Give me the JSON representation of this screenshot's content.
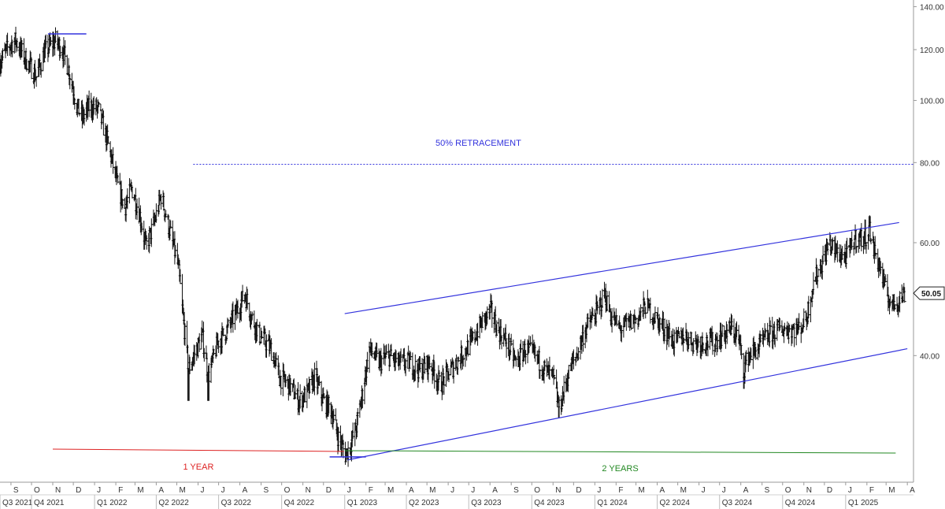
{
  "chart_data": {
    "type": "ohlc",
    "scale": "log",
    "ylim": [
      26,
      145
    ],
    "xlim": [
      "2021-08-16",
      "2025-04-10"
    ],
    "grid": false,
    "y_ticks": [
      "140.00",
      "120.00",
      "100.00",
      "80.00",
      "60.00",
      "40.00"
    ],
    "y_tick_values": [
      140,
      120,
      100,
      80,
      60,
      40
    ],
    "last_price": "50.05",
    "last_price_value": 50.05,
    "month_labels": [
      {
        "label": "S",
        "date": "2021-09-01"
      },
      {
        "label": "O",
        "date": "2021-10-01"
      },
      {
        "label": "N",
        "date": "2021-11-01"
      },
      {
        "label": "D",
        "date": "2021-12-01"
      },
      {
        "label": "J",
        "date": "2022-01-01"
      },
      {
        "label": "F",
        "date": "2022-02-01"
      },
      {
        "label": "M",
        "date": "2022-03-01"
      },
      {
        "label": "A",
        "date": "2022-04-01"
      },
      {
        "label": "M",
        "date": "2022-05-01"
      },
      {
        "label": "J",
        "date": "2022-06-01"
      },
      {
        "label": "J",
        "date": "2022-07-01"
      },
      {
        "label": "A",
        "date": "2022-08-01"
      },
      {
        "label": "S",
        "date": "2022-09-01"
      },
      {
        "label": "O",
        "date": "2022-10-01"
      },
      {
        "label": "N",
        "date": "2022-11-01"
      },
      {
        "label": "D",
        "date": "2022-12-01"
      },
      {
        "label": "J",
        "date": "2023-01-01"
      },
      {
        "label": "F",
        "date": "2023-02-01"
      },
      {
        "label": "M",
        "date": "2023-03-01"
      },
      {
        "label": "A",
        "date": "2023-04-01"
      },
      {
        "label": "M",
        "date": "2023-05-01"
      },
      {
        "label": "J",
        "date": "2023-06-01"
      },
      {
        "label": "J",
        "date": "2023-07-01"
      },
      {
        "label": "A",
        "date": "2023-08-01"
      },
      {
        "label": "S",
        "date": "2023-09-01"
      },
      {
        "label": "O",
        "date": "2023-10-01"
      },
      {
        "label": "N",
        "date": "2023-11-01"
      },
      {
        "label": "D",
        "date": "2023-12-01"
      },
      {
        "label": "J",
        "date": "2024-01-01"
      },
      {
        "label": "F",
        "date": "2024-02-01"
      },
      {
        "label": "M",
        "date": "2024-03-01"
      },
      {
        "label": "A",
        "date": "2024-04-01"
      },
      {
        "label": "M",
        "date": "2024-05-01"
      },
      {
        "label": "J",
        "date": "2024-06-01"
      },
      {
        "label": "J",
        "date": "2024-07-01"
      },
      {
        "label": "A",
        "date": "2024-08-01"
      },
      {
        "label": "S",
        "date": "2024-09-01"
      },
      {
        "label": "O",
        "date": "2024-10-01"
      },
      {
        "label": "N",
        "date": "2024-11-01"
      },
      {
        "label": "D",
        "date": "2024-12-01"
      },
      {
        "label": "J",
        "date": "2025-01-01"
      },
      {
        "label": "F",
        "date": "2025-02-01"
      },
      {
        "label": "M",
        "date": "2025-03-01"
      },
      {
        "label": "A",
        "date": "2025-04-01"
      }
    ],
    "quarter_labels": [
      {
        "label": "Q3 2021",
        "date": "2021-07-01"
      },
      {
        "label": "Q4 2021",
        "date": "2021-10-01"
      },
      {
        "label": "Q1 2022",
        "date": "2022-01-01"
      },
      {
        "label": "Q2 2022",
        "date": "2022-04-01"
      },
      {
        "label": "Q3 2022",
        "date": "2022-07-01"
      },
      {
        "label": "Q4 2022",
        "date": "2022-10-01"
      },
      {
        "label": "Q1 2023",
        "date": "2023-01-01"
      },
      {
        "label": "Q2 2023",
        "date": "2023-04-01"
      },
      {
        "label": "Q3 2023",
        "date": "2023-07-01"
      },
      {
        "label": "Q4 2023",
        "date": "2023-10-01"
      },
      {
        "label": "Q1 2024",
        "date": "2024-01-01"
      },
      {
        "label": "Q2 2024",
        "date": "2024-04-01"
      },
      {
        "label": "Q3 2024",
        "date": "2024-07-01"
      },
      {
        "label": "Q4 2024",
        "date": "2024-10-01"
      },
      {
        "label": "Q1 2025",
        "date": "2025-01-01"
      }
    ],
    "price_anchors": [
      [
        "2021-08-16",
        115
      ],
      [
        "2021-08-30",
        122
      ],
      [
        "2021-09-08",
        124
      ],
      [
        "2021-09-22",
        116
      ],
      [
        "2021-10-08",
        109
      ],
      [
        "2021-10-20",
        119
      ],
      [
        "2021-11-05",
        124
      ],
      [
        "2021-11-15",
        120
      ],
      [
        "2021-11-25",
        111
      ],
      [
        "2021-12-06",
        98
      ],
      [
        "2021-12-14",
        94
      ],
      [
        "2021-12-25",
        98
      ],
      [
        "2022-01-06",
        97
      ],
      [
        "2022-01-20",
        86
      ],
      [
        "2022-02-03",
        74
      ],
      [
        "2022-02-14",
        68
      ],
      [
        "2022-02-24",
        73
      ],
      [
        "2022-03-07",
        67
      ],
      [
        "2022-03-17",
        59
      ],
      [
        "2022-03-30",
        65
      ],
      [
        "2022-04-08",
        71
      ],
      [
        "2022-04-20",
        63
      ],
      [
        "2022-05-03",
        55
      ],
      [
        "2022-05-10",
        46
      ],
      [
        "2022-05-18",
        38
      ],
      [
        "2022-05-26",
        40
      ],
      [
        "2022-06-07",
        43
      ],
      [
        "2022-06-16",
        37
      ],
      [
        "2022-06-30",
        42
      ],
      [
        "2022-07-14",
        44
      ],
      [
        "2022-07-28",
        47
      ],
      [
        "2022-08-08",
        50
      ],
      [
        "2022-08-18",
        46
      ],
      [
        "2022-08-30",
        43
      ],
      [
        "2022-09-15",
        41
      ],
      [
        "2022-09-28",
        37
      ],
      [
        "2022-10-12",
        36
      ],
      [
        "2022-10-26",
        34
      ],
      [
        "2022-11-08",
        35
      ],
      [
        "2022-11-18",
        37
      ],
      [
        "2022-12-01",
        34
      ],
      [
        "2022-12-12",
        33
      ],
      [
        "2022-12-22",
        30
      ],
      [
        "2023-01-02",
        28
      ],
      [
        "2023-01-09",
        29
      ],
      [
        "2023-01-18",
        31
      ],
      [
        "2023-01-27",
        35
      ],
      [
        "2023-02-06",
        41
      ],
      [
        "2023-02-20",
        39
      ],
      [
        "2023-03-06",
        40
      ],
      [
        "2023-03-20",
        39
      ],
      [
        "2023-04-05",
        39
      ],
      [
        "2023-04-20",
        38
      ],
      [
        "2023-05-05",
        39
      ],
      [
        "2023-05-20",
        36
      ],
      [
        "2023-06-05",
        38
      ],
      [
        "2023-06-20",
        40
      ],
      [
        "2023-07-05",
        42
      ],
      [
        "2023-07-20",
        45
      ],
      [
        "2023-08-02",
        47
      ],
      [
        "2023-08-12",
        44
      ],
      [
        "2023-08-25",
        42
      ],
      [
        "2023-09-08",
        39
      ],
      [
        "2023-09-22",
        41
      ],
      [
        "2023-10-06",
        40
      ],
      [
        "2023-10-20",
        38
      ],
      [
        "2023-11-01",
        37
      ],
      [
        "2023-11-10",
        33
      ],
      [
        "2023-11-25",
        38
      ],
      [
        "2023-12-05",
        40
      ],
      [
        "2023-12-18",
        44
      ],
      [
        "2024-01-05",
        47
      ],
      [
        "2024-01-15",
        50
      ],
      [
        "2024-01-25",
        46
      ],
      [
        "2024-02-07",
        44
      ],
      [
        "2024-02-20",
        45
      ],
      [
        "2024-03-05",
        46
      ],
      [
        "2024-03-15",
        48
      ],
      [
        "2024-03-28",
        46
      ],
      [
        "2024-04-12",
        44
      ],
      [
        "2024-04-26",
        42
      ],
      [
        "2024-05-10",
        43
      ],
      [
        "2024-05-25",
        42
      ],
      [
        "2024-06-08",
        42
      ],
      [
        "2024-06-22",
        42
      ],
      [
        "2024-07-05",
        43
      ],
      [
        "2024-07-18",
        44
      ],
      [
        "2024-07-28",
        43
      ],
      [
        "2024-08-05",
        38
      ],
      [
        "2024-08-12",
        40
      ],
      [
        "2024-08-25",
        41
      ],
      [
        "2024-09-10",
        43
      ],
      [
        "2024-09-25",
        44
      ],
      [
        "2024-10-10",
        44
      ],
      [
        "2024-10-25",
        44
      ],
      [
        "2024-11-05",
        46
      ],
      [
        "2024-11-15",
        52
      ],
      [
        "2024-11-28",
        56
      ],
      [
        "2024-12-08",
        60
      ],
      [
        "2024-12-18",
        58
      ],
      [
        "2025-01-02",
        57
      ],
      [
        "2025-01-15",
        61
      ],
      [
        "2025-01-28",
        61
      ],
      [
        "2025-02-05",
        63
      ],
      [
        "2025-02-10",
        59
      ],
      [
        "2025-02-20",
        55
      ],
      [
        "2025-03-01",
        50
      ],
      [
        "2025-03-10",
        48
      ],
      [
        "2025-03-20",
        49
      ],
      [
        "2025-03-28",
        50
      ]
    ],
    "spikes": [
      {
        "date": "2022-05-18",
        "low": 34
      },
      {
        "date": "2022-06-16",
        "low": 34
      },
      {
        "date": "2023-01-02",
        "low": 28
      },
      {
        "date": "2023-11-10",
        "low": 32
      },
      {
        "date": "2024-08-05",
        "low": 35.5
      },
      {
        "date": "2025-02-05",
        "high": 66
      }
    ],
    "lines": [
      {
        "kind": "channel-upper",
        "color": "#3333dd",
        "from": [
          "2023-01-01",
          46.5
        ],
        "to": [
          "2025-03-20",
          64.5
        ]
      },
      {
        "kind": "channel-lower",
        "color": "#3333dd",
        "from": [
          "2023-01-05",
          27.5
        ],
        "to": [
          "2025-04-01",
          41
        ]
      },
      {
        "kind": "top-marker",
        "color": "#3333dd",
        "from": [
          "2021-10-25",
          127
        ],
        "to": [
          "2021-12-20",
          127
        ]
      },
      {
        "kind": "bottom-marker",
        "color": "#3333dd",
        "from": [
          "2022-12-10",
          27.8
        ],
        "to": [
          "2023-02-01",
          27.8
        ]
      },
      {
        "kind": "retracement",
        "color": "#3333dd",
        "dashed": true,
        "from": [
          "2022-05-25",
          79.5
        ],
        "to": [
          "2025-04-10",
          79.5
        ]
      }
    ],
    "spans": [
      {
        "label": "1 YEAR",
        "color": "#dd2222",
        "from": "2021-11-01",
        "to": "2022-12-31"
      },
      {
        "label": "2 YEARS",
        "color": "#228822",
        "from": "2023-01-01",
        "to": "2025-03-15"
      }
    ],
    "annotations": [
      {
        "text": "50% RETRACEMENT",
        "color": "#3333dd",
        "date": "2023-07-15",
        "value": 85
      }
    ]
  }
}
